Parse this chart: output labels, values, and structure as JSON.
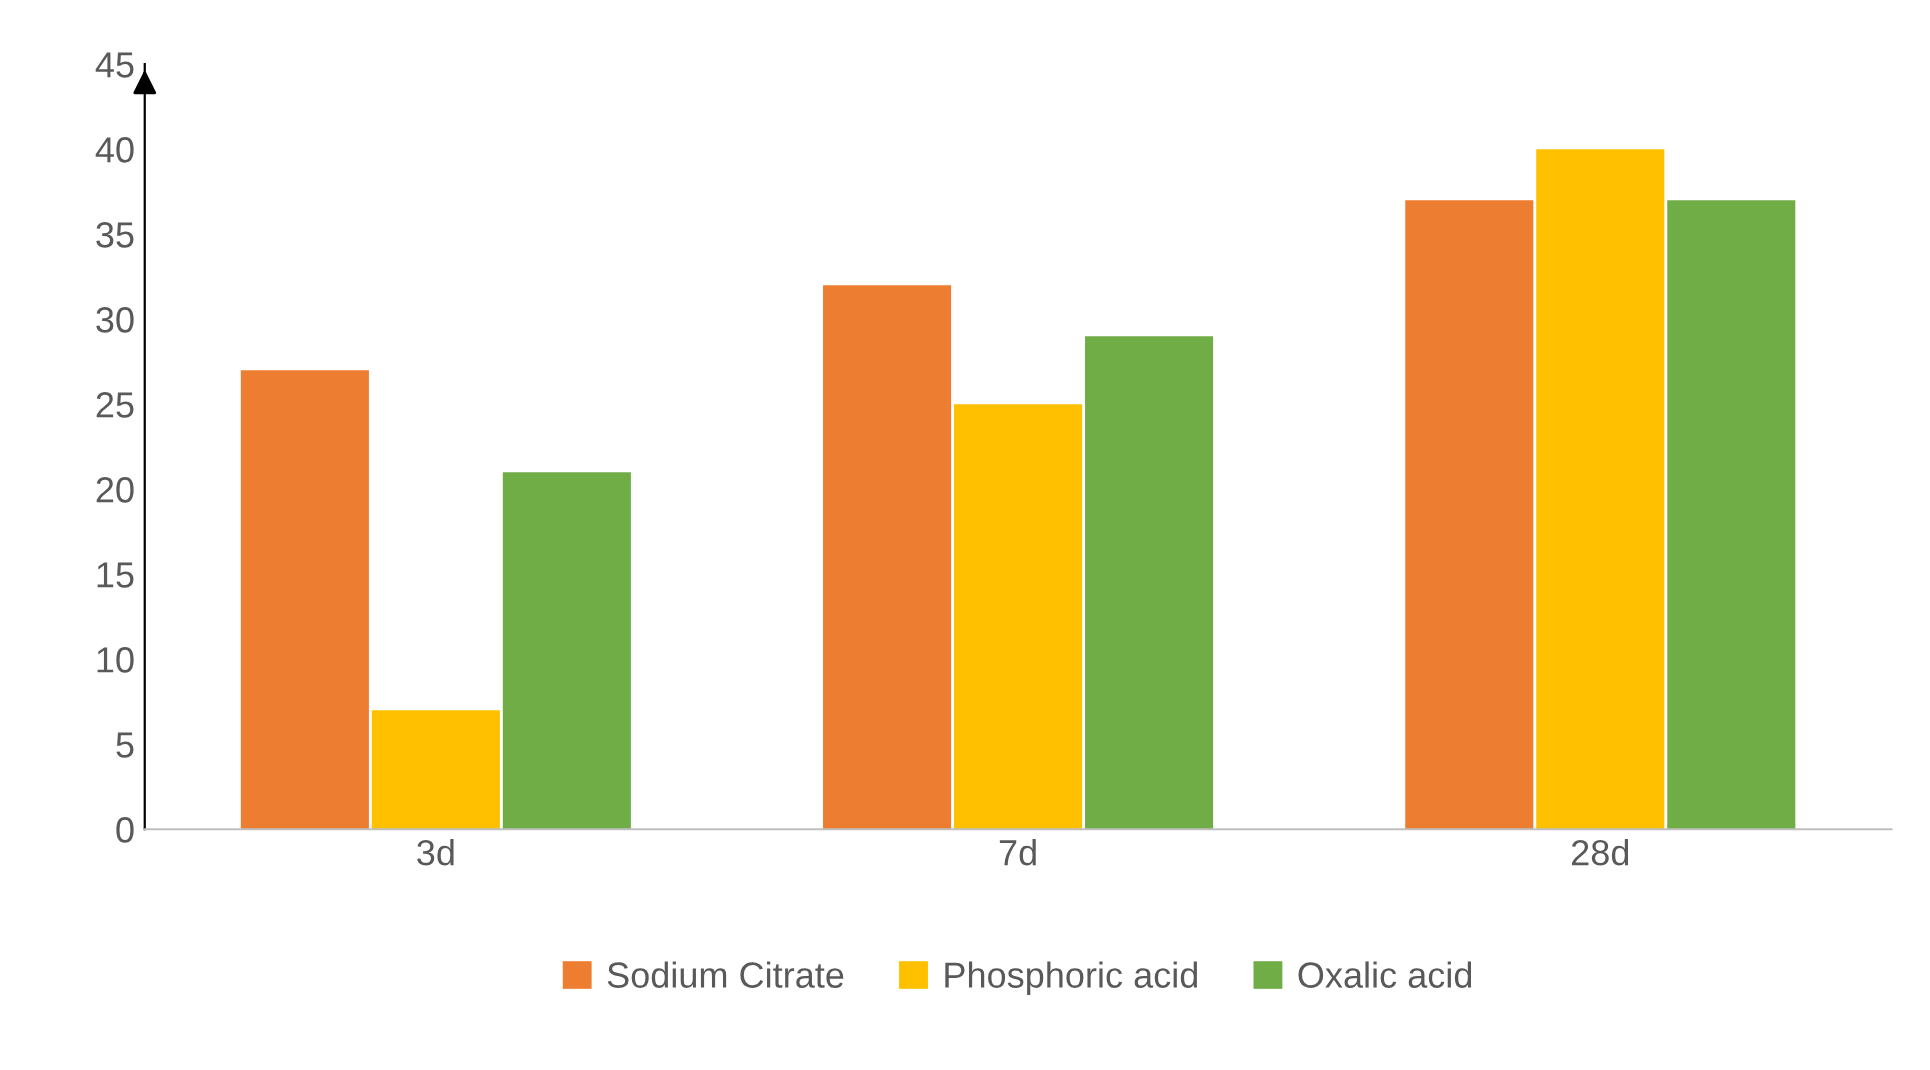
{
  "chart_data": {
    "type": "bar",
    "categories": [
      "3d",
      "7d",
      "28d"
    ],
    "series": [
      {
        "name": "Sodium Citrate",
        "color": "#ed7d31",
        "values": [
          27,
          32,
          37
        ]
      },
      {
        "name": "Phosphoric acid",
        "color": "#ffc000",
        "values": [
          7,
          25,
          40
        ]
      },
      {
        "name": "Oxalic acid",
        "color": "#70ad47",
        "values": [
          21,
          29,
          37
        ]
      }
    ],
    "ylim": [
      0,
      45
    ],
    "yticks": [
      0,
      5,
      10,
      15,
      20,
      25,
      30,
      35,
      40,
      45
    ],
    "grid": false,
    "legend": "bottom"
  }
}
